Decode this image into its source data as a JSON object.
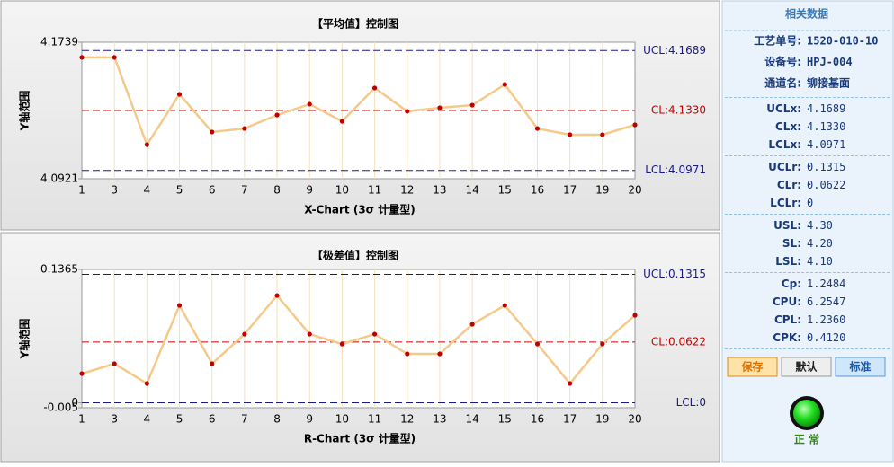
{
  "chart_data": [
    {
      "type": "line",
      "title": "【平均值】控制图",
      "x_label": "X-Chart (3σ 计量型)",
      "y_label": "Y轴范围",
      "categories": [
        "1",
        "3",
        "4",
        "5",
        "6",
        "7",
        "8",
        "9",
        "10",
        "11",
        "12",
        "13",
        "14",
        "15",
        "16",
        "17",
        "19",
        "20"
      ],
      "values": [
        4.1648,
        4.1648,
        4.1125,
        4.1427,
        4.1201,
        4.1222,
        4.1303,
        4.1368,
        4.1265,
        4.1465,
        4.1325,
        4.1346,
        4.1362,
        4.1486,
        4.1222,
        4.1185,
        4.1185,
        4.1244
      ],
      "color": "#f5c98a",
      "marker_color": "#c00000",
      "ylim": [
        4.0921,
        4.1739
      ],
      "yticks": [
        4.0921,
        4.1739
      ],
      "control_lines": [
        {
          "value": 4.1689,
          "label": "UCL:4.1689",
          "color": "#1a1a8c"
        },
        {
          "value": 4.133,
          "label": "CL:4.1330",
          "color": "#cc0000"
        },
        {
          "value": 4.0971,
          "label": "LCL:4.0971",
          "color": "#1a1a8c"
        }
      ]
    },
    {
      "type": "line",
      "title": "【极差值】控制图",
      "x_label": "R-Chart (3σ 计量型)",
      "y_label": "Y轴范围",
      "categories": [
        "1",
        "3",
        "4",
        "5",
        "6",
        "7",
        "8",
        "9",
        "10",
        "11",
        "12",
        "13",
        "14",
        "15",
        "16",
        "17",
        "19",
        "20"
      ],
      "values": [
        0.0299,
        0.04,
        0.0198,
        0.0997,
        0.04,
        0.0703,
        0.1098,
        0.0703,
        0.0602,
        0.0703,
        0.0501,
        0.0501,
        0.0804,
        0.0997,
        0.0602,
        0.0198,
        0.0602,
        0.0896
      ],
      "color": "#f5c98a",
      "marker_color": "#c00000",
      "ylim": [
        -0.005,
        0.1365
      ],
      "yticks": [
        -0.005,
        0,
        0.1365
      ],
      "control_lines": [
        {
          "value": 0.1315,
          "label": "UCL:0.1315",
          "color": "#1a1a8c"
        },
        {
          "value": 0.0622,
          "label": "CL:0.0622",
          "color": "#cc0000"
        },
        {
          "value": 0,
          "label": "LCL:0",
          "color": "#1a1a8c"
        }
      ]
    }
  ],
  "panel": {
    "title": "相关数据",
    "groups": [
      [
        {
          "label": "工艺单号:",
          "value": "1520-010-10"
        },
        {
          "label": "设备号:",
          "value": "HPJ-004"
        },
        {
          "label": "通道名:",
          "value": "铆接基面"
        }
      ],
      [
        {
          "label": "UCLx:",
          "value": "4.1689"
        },
        {
          "label": "CLx:",
          "value": "4.1330"
        },
        {
          "label": "LCLx:",
          "value": "4.0971"
        }
      ],
      [
        {
          "label": "UCLr:",
          "value": "0.1315"
        },
        {
          "label": "CLr:",
          "value": "0.0622"
        },
        {
          "label": "LCLr:",
          "value": "0"
        }
      ],
      [
        {
          "label": "USL:",
          "value": "4.30"
        },
        {
          "label": "SL:",
          "value": "4.20"
        },
        {
          "label": "LSL:",
          "value": "4.10"
        }
      ],
      [
        {
          "label": "Cp:",
          "value": "1.2484"
        },
        {
          "label": "CPU:",
          "value": "6.2547"
        },
        {
          "label": "CPL:",
          "value": "1.2360"
        },
        {
          "label": "CPK:",
          "value": "0.4120"
        }
      ]
    ],
    "buttons": [
      "保存",
      "默认",
      "标准"
    ],
    "status": "正 常"
  }
}
